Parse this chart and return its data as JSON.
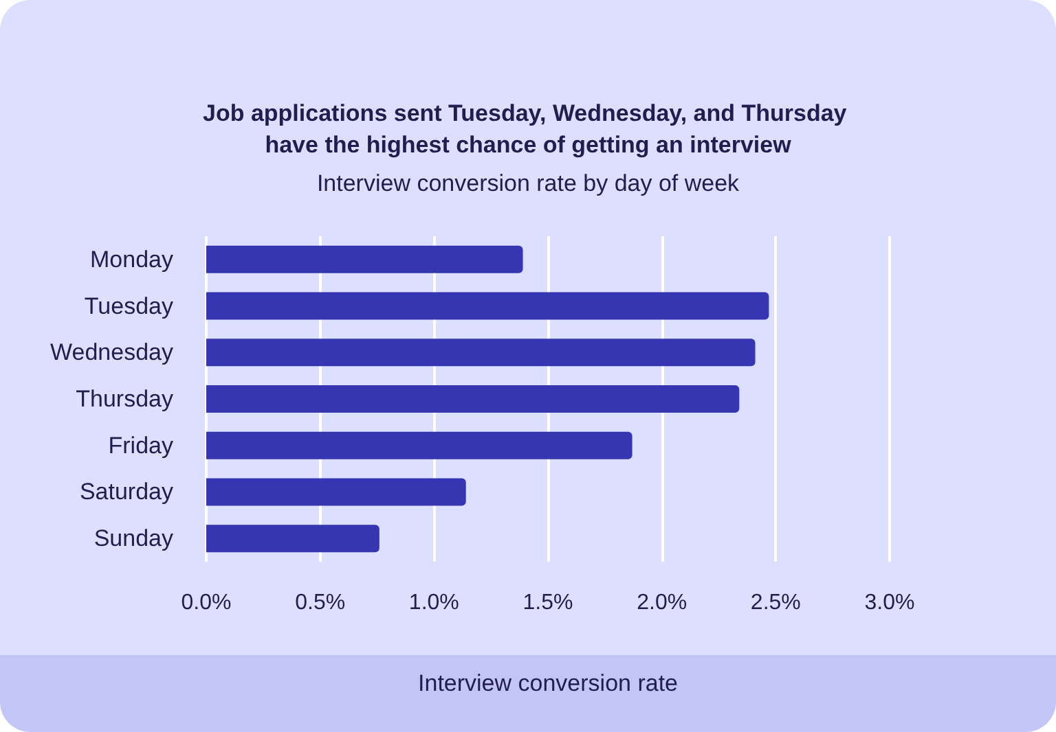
{
  "chart_data": {
    "type": "bar",
    "orientation": "horizontal",
    "title": "Job applications sent Tuesday, Wednesday, and Thursday have the highest chance of getting an interview",
    "subtitle": "Interview conversion rate by day of week",
    "xlabel": "Interview conversion rate",
    "categories": [
      "Monday",
      "Tuesday",
      "Wednesday",
      "Thursday",
      "Friday",
      "Saturday",
      "Sunday"
    ],
    "values": [
      1.39,
      2.47,
      2.41,
      2.34,
      1.87,
      1.14,
      0.76
    ],
    "color": "#3636b3",
    "xlim": [
      0,
      3
    ],
    "xticks": [
      {
        "value": 0,
        "label": "0.0%"
      },
      {
        "value": 0.5,
        "label": "0.5%"
      },
      {
        "value": 1,
        "label": "1.0%"
      },
      {
        "value": 1.5,
        "label": "1.5%"
      },
      {
        "value": 2,
        "label": "2.0%"
      },
      {
        "value": 2.5,
        "label": "2.5%"
      },
      {
        "value": 3,
        "label": "3.0%"
      }
    ],
    "grid": "x"
  }
}
